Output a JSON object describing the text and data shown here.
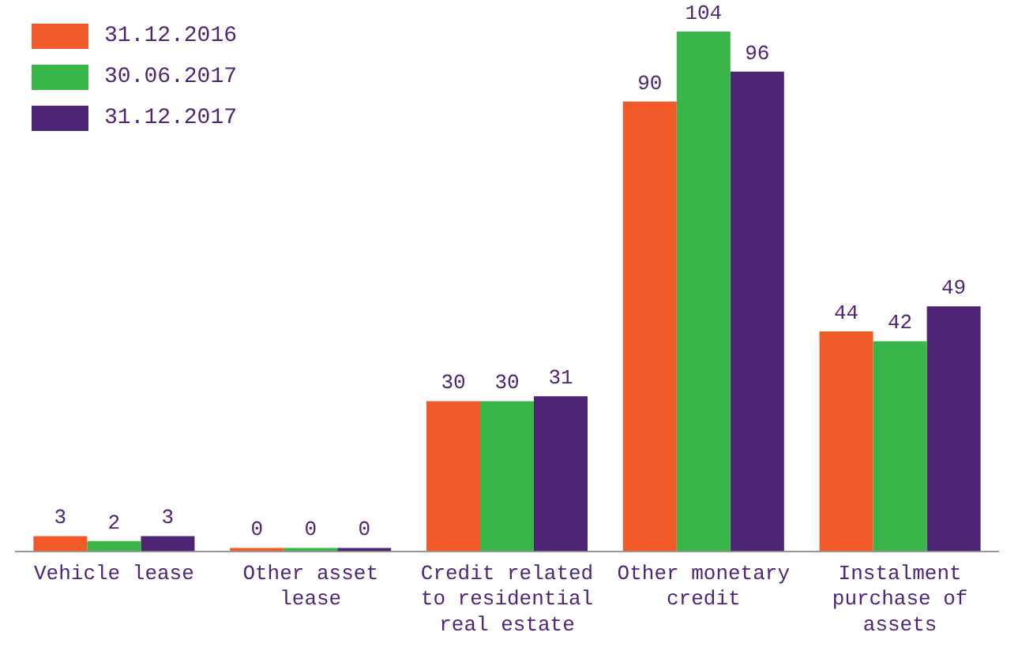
{
  "chart_data": {
    "type": "bar",
    "data_labels": true,
    "legend": "top left",
    "grid": false,
    "categories": [
      "Vehicle lease",
      "Other asset lease",
      "Credit related to residential real estate",
      "Other monetary credit",
      "Instalment purchase of assets"
    ],
    "series": [
      {
        "name": "31.12.2016",
        "color": "#f15a29",
        "values": [
          3,
          0,
          30,
          90,
          44
        ]
      },
      {
        "name": "30.06.2017",
        "color": "#3ab54a",
        "values": [
          2,
          0,
          30,
          104,
          42
        ]
      },
      {
        "name": "31.12.2017",
        "color": "#4e2474",
        "values": [
          3,
          0,
          31,
          96,
          49
        ]
      }
    ]
  }
}
